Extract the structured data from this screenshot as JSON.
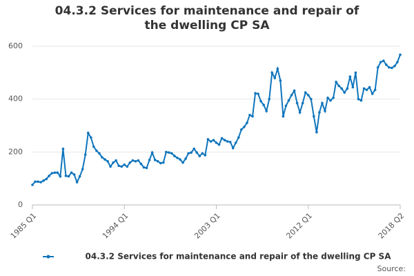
{
  "chart_data": {
    "type": "line",
    "title": "04.3.2 Services for maintenance and repair of the dwelling CP SA",
    "source": "Source:",
    "categories": [
      "1985 Q1",
      null,
      null,
      null,
      null,
      null,
      null,
      null,
      null,
      null,
      null,
      null,
      null,
      null,
      null,
      null,
      null,
      null,
      null,
      null,
      null,
      null,
      null,
      null,
      null,
      null,
      null,
      null,
      null,
      null,
      null,
      null,
      null,
      "1994 Q1",
      null,
      null,
      null,
      null,
      null,
      null,
      null,
      null,
      null,
      null,
      null,
      null,
      null,
      null,
      null,
      null,
      null,
      null,
      null,
      null,
      null,
      null,
      null,
      null,
      null,
      null,
      null,
      null,
      null,
      null,
      null,
      null,
      "2003 Q1",
      null,
      null,
      null,
      null,
      null,
      null,
      null,
      null,
      null,
      null,
      null,
      null,
      null,
      null,
      null,
      null,
      null,
      null,
      null,
      null,
      null,
      null,
      null,
      null,
      null,
      null,
      null,
      null,
      null,
      null,
      null,
      null,
      "2012 Q1",
      null,
      null,
      null,
      null,
      null,
      null,
      null,
      null,
      null,
      null,
      null,
      null,
      null,
      null,
      null,
      null,
      null,
      null,
      null,
      null,
      null,
      null,
      null,
      null,
      null,
      null,
      null,
      null,
      null,
      null,
      null,
      null,
      "2018 Q2"
    ],
    "series": [
      {
        "name": "04.3.2 Services for maintenance and repair of the dwelling CP SA",
        "color": "#0f75bc",
        "values": [
          76,
          88,
          88,
          86,
          92,
          98,
          110,
          120,
          122,
          122,
          108,
          212,
          110,
          108,
          122,
          115,
          86,
          108,
          135,
          190,
          272,
          255,
          220,
          205,
          195,
          180,
          172,
          165,
          145,
          160,
          168,
          148,
          145,
          152,
          145,
          160,
          168,
          165,
          168,
          155,
          142,
          140,
          170,
          198,
          170,
          165,
          158,
          160,
          200,
          198,
          195,
          185,
          178,
          172,
          160,
          175,
          195,
          198,
          212,
          198,
          185,
          195,
          188,
          248,
          240,
          245,
          235,
          228,
          252,
          245,
          240,
          238,
          215,
          235,
          255,
          285,
          295,
          310,
          340,
          335,
          422,
          420,
          392,
          378,
          355,
          400,
          500,
          480,
          515,
          470,
          335,
          375,
          395,
          415,
          432,
          385,
          350,
          385,
          425,
          415,
          400,
          335,
          275,
          350,
          385,
          355,
          405,
          395,
          405,
          465,
          450,
          440,
          425,
          440,
          485,
          445,
          500,
          400,
          395,
          440,
          435,
          445,
          420,
          435,
          520,
          540,
          545,
          530,
          520,
          518,
          525,
          540,
          568
        ]
      }
    ],
    "ylim": [
      0,
      600
    ],
    "yticks": [
      0,
      200,
      400,
      600
    ],
    "grid": true
  }
}
